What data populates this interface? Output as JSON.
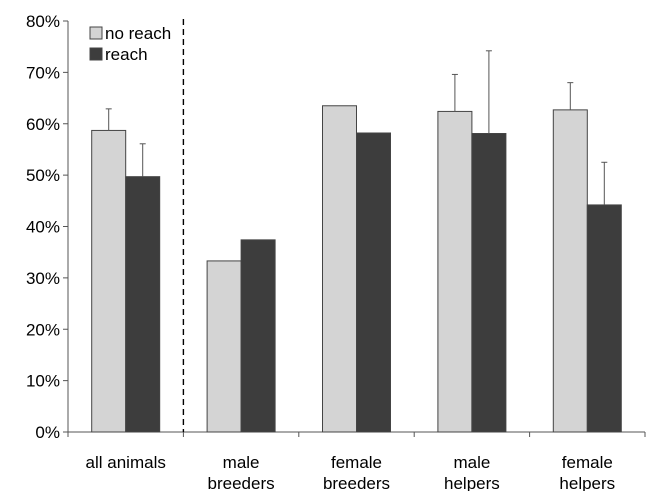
{
  "chart_data": {
    "type": "bar",
    "categories": [
      [
        "all animals"
      ],
      [
        "male",
        "breeders"
      ],
      [
        "female",
        "breeders"
      ],
      [
        "male",
        "helpers"
      ],
      [
        "female",
        "helpers"
      ]
    ],
    "series": [
      {
        "name": "no reach",
        "color": "#d4d4d4",
        "values": [
          58.7,
          33.3,
          63.5,
          62.4,
          62.7
        ],
        "err": [
          4.2,
          null,
          null,
          7.2,
          5.3
        ]
      },
      {
        "name": "reach",
        "color": "#3d3d3d",
        "values": [
          49.7,
          37.4,
          58.2,
          58.1,
          44.2
        ],
        "err": [
          6.4,
          null,
          null,
          16.1,
          8.3
        ]
      }
    ],
    "yticks": [
      "0%",
      "10%",
      "20%",
      "30%",
      "40%",
      "50%",
      "60%",
      "70%",
      "80%"
    ],
    "ylim": [
      0,
      80
    ],
    "legend_position": "top-left",
    "separator_after_category": 0
  }
}
